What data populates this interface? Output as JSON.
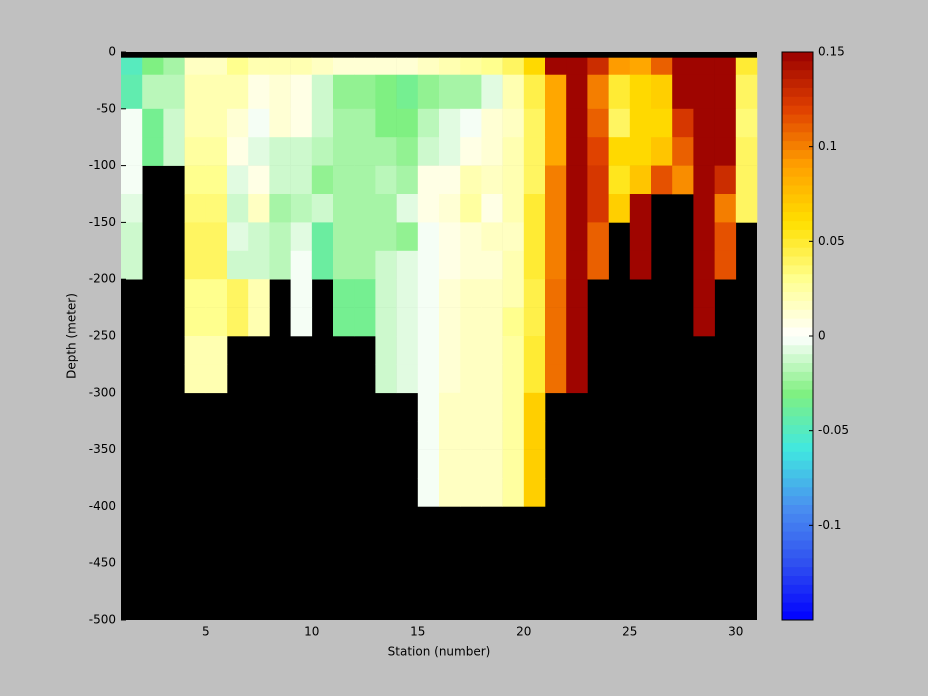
{
  "chart_data": {
    "type": "heatmap",
    "xlabel": "Station (number)",
    "ylabel": "Depth (meter)",
    "x": [
      1,
      2,
      3,
      4,
      5,
      6,
      7,
      8,
      9,
      10,
      11,
      12,
      13,
      14,
      15,
      16,
      17,
      18,
      19,
      20,
      21,
      22,
      23,
      24,
      25,
      26,
      27,
      28,
      29,
      30
    ],
    "y_edges": [
      -5,
      -20,
      -50,
      -75,
      -100,
      -125,
      -150,
      -175,
      -200,
      -225,
      -250,
      -275,
      -300,
      -325,
      -350,
      -375,
      -400
    ],
    "values": [
      [
        -0.05,
        -0.03,
        -0.02,
        0.015,
        0.015,
        0.03,
        0.02,
        0.02,
        0.02,
        0.015,
        0.01,
        0.01,
        0.01,
        0.01,
        0.015,
        0.02,
        0.025,
        0.03,
        0.04,
        0.065,
        0.15,
        0.15,
        0.13,
        0.09,
        0.085,
        0.11,
        0.15,
        0.15,
        0.15,
        0.05
      ],
      [
        -0.045,
        -0.015,
        -0.015,
        0.02,
        0.02,
        0.02,
        0.005,
        0.01,
        0.005,
        -0.01,
        -0.025,
        -0.025,
        -0.03,
        -0.035,
        -0.025,
        -0.02,
        -0.02,
        -0.005,
        0.02,
        0.045,
        0.085,
        0.15,
        0.1,
        0.05,
        0.065,
        0.07,
        0.15,
        0.15,
        0.15,
        0.04
      ],
      [
        0,
        -0.035,
        -0.01,
        0.02,
        0.02,
        0.01,
        0,
        0.01,
        0.005,
        -0.01,
        -0.02,
        -0.02,
        -0.03,
        -0.03,
        -0.015,
        -0.005,
        0,
        0.01,
        0.015,
        0.04,
        0.085,
        0.15,
        0.11,
        0.04,
        0.065,
        0.065,
        0.125,
        0.15,
        0.15,
        0.035
      ],
      [
        0,
        -0.035,
        -0.01,
        0.025,
        0.025,
        0.005,
        -0.005,
        -0.01,
        -0.01,
        -0.015,
        -0.02,
        -0.02,
        -0.02,
        -0.025,
        -0.01,
        -0.005,
        0.005,
        0.01,
        0.02,
        0.04,
        0.085,
        0.15,
        0.12,
        0.065,
        0.065,
        0.075,
        0.11,
        0.15,
        0.15,
        0.04
      ],
      [
        0,
        null,
        null,
        0.03,
        0.03,
        -0.005,
        0.005,
        -0.01,
        -0.01,
        -0.025,
        -0.02,
        -0.02,
        -0.015,
        -0.02,
        0.005,
        0.005,
        0.02,
        0.015,
        0.02,
        0.04,
        0.1,
        0.15,
        0.125,
        0.055,
        0.075,
        0.115,
        0.095,
        0.15,
        0.13,
        0.04
      ],
      [
        -0.005,
        null,
        null,
        0.035,
        0.035,
        -0.01,
        0.015,
        -0.02,
        -0.015,
        -0.01,
        -0.02,
        -0.02,
        -0.02,
        -0.005,
        0.005,
        0.01,
        0.025,
        0.005,
        0.02,
        0.05,
        0.1,
        0.15,
        0.125,
        0.07,
        0.15,
        null,
        null,
        0.15,
        0.1,
        0.04
      ],
      [
        -0.01,
        null,
        null,
        0.04,
        0.04,
        -0.005,
        -0.01,
        -0.015,
        -0.005,
        -0.04,
        -0.02,
        -0.02,
        -0.02,
        -0.025,
        0,
        0.005,
        0.01,
        0.015,
        0.015,
        0.05,
        0.1,
        0.15,
        0.11,
        null,
        0.15,
        null,
        null,
        0.15,
        0.115,
        null
      ],
      [
        -0.01,
        null,
        null,
        0.04,
        0.04,
        -0.01,
        -0.01,
        -0.015,
        0,
        -0.04,
        -0.02,
        -0.02,
        -0.01,
        -0.005,
        0,
        0.005,
        0.01,
        0.01,
        0.02,
        0.05,
        0.1,
        0.15,
        0.11,
        null,
        0.15,
        null,
        null,
        0.15,
        0.115,
        null
      ],
      [
        null,
        null,
        null,
        0.03,
        0.03,
        0.04,
        0.02,
        null,
        0,
        null,
        -0.035,
        -0.035,
        -0.01,
        -0.005,
        0,
        0.01,
        0.015,
        0.015,
        0.02,
        0.045,
        0.105,
        0.15,
        null,
        null,
        null,
        null,
        null,
        0.15,
        null,
        null
      ],
      [
        null,
        null,
        null,
        0.03,
        0.03,
        0.04,
        0.02,
        null,
        0,
        null,
        -0.035,
        -0.035,
        -0.01,
        -0.005,
        0,
        0.01,
        0.015,
        0.015,
        0.03,
        0.045,
        0.105,
        0.15,
        null,
        null,
        null,
        null,
        null,
        0.15,
        null,
        null
      ],
      [
        null,
        null,
        null,
        0.02,
        0.02,
        null,
        null,
        null,
        null,
        null,
        null,
        null,
        -0.01,
        -0.005,
        0,
        0.01,
        0.015,
        0.015,
        0.025,
        0.05,
        0.105,
        0.15,
        null,
        null,
        null,
        null,
        null,
        null,
        null,
        null
      ],
      [
        null,
        null,
        null,
        0.02,
        0.02,
        null,
        null,
        null,
        null,
        null,
        null,
        null,
        -0.01,
        -0.005,
        0,
        0.01,
        0.015,
        0.015,
        0.025,
        0.05,
        0.105,
        0.15,
        null,
        null,
        null,
        null,
        null,
        null,
        null,
        null
      ],
      [
        null,
        null,
        null,
        null,
        null,
        null,
        null,
        null,
        null,
        null,
        null,
        null,
        null,
        null,
        0,
        0.015,
        0.015,
        0.015,
        0.025,
        0.07,
        null,
        null,
        null,
        null,
        null,
        null,
        null,
        null,
        null,
        null
      ],
      [
        null,
        null,
        null,
        null,
        null,
        null,
        null,
        null,
        null,
        null,
        null,
        null,
        null,
        null,
        0,
        0.015,
        0.015,
        0.015,
        0.025,
        0.07,
        null,
        null,
        null,
        null,
        null,
        null,
        null,
        null,
        null,
        null
      ],
      [
        null,
        null,
        null,
        null,
        null,
        null,
        null,
        null,
        null,
        null,
        null,
        null,
        null,
        null,
        0,
        0.015,
        0.015,
        0.015,
        0.025,
        0.07,
        null,
        null,
        null,
        null,
        null,
        null,
        null,
        null,
        null,
        null
      ],
      [
        null,
        null,
        null,
        null,
        null,
        null,
        null,
        null,
        null,
        null,
        null,
        null,
        null,
        null,
        0,
        0.015,
        0.015,
        0.015,
        0.025,
        0.07,
        null,
        null,
        null,
        null,
        null,
        null,
        null,
        null,
        null,
        null
      ]
    ],
    "xlim": [
      1,
      31
    ],
    "xticks": [
      5,
      10,
      15,
      20,
      25,
      30
    ],
    "ylim": [
      -500,
      0
    ],
    "yticks": [
      0,
      -50,
      -100,
      -150,
      -200,
      -250,
      -300,
      -350,
      -400,
      -450,
      -500
    ],
    "clim": [
      -0.15,
      0.15
    ],
    "cticks": [
      0.15,
      0.1,
      0.05,
      0,
      -0.05,
      -0.1
    ],
    "colormap": [
      "#0000ff",
      "#3050f0",
      "#4a90f0",
      "#40e8e0",
      "#80f080",
      "#ffffff",
      "#ffff90",
      "#ffe000",
      "#ffa000",
      "#e04000",
      "#990000"
    ],
    "background_color": "#000000"
  }
}
